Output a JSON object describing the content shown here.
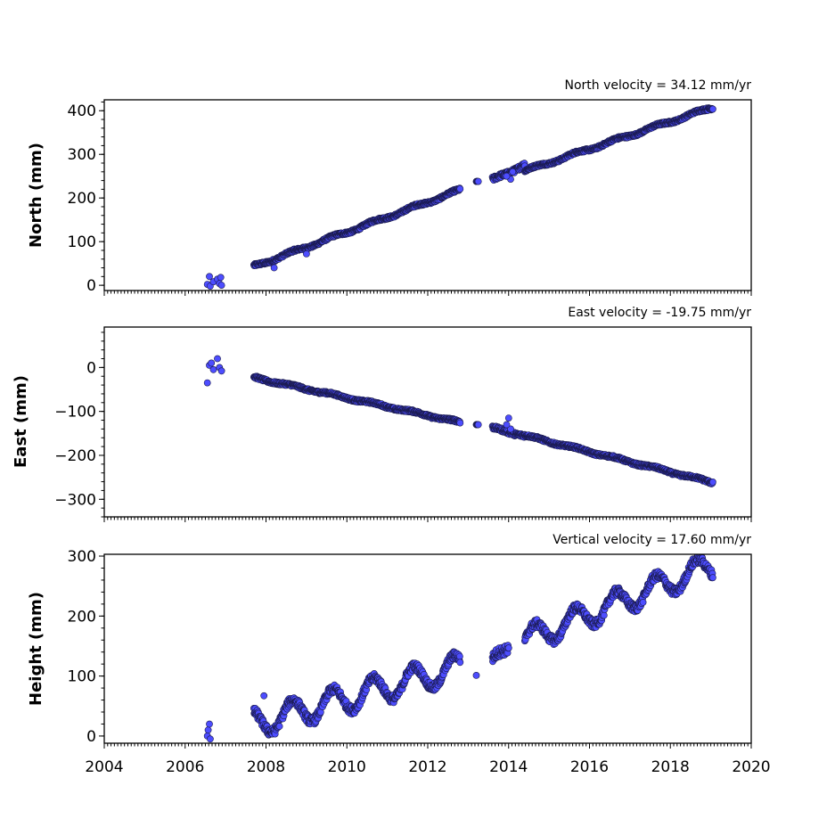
{
  "chart_data": [
    {
      "type": "scatter",
      "id": "north",
      "ylabel": "North (mm)",
      "annotation": "North velocity = 34.12 mm/yr",
      "xlim": [
        2004,
        2020
      ],
      "ylim": [
        -12,
        425
      ],
      "yticks": [
        0,
        100,
        200,
        300,
        400
      ],
      "yminor_step": 20,
      "outliers": [
        [
          2006.55,
          2
        ],
        [
          2006.6,
          20
        ],
        [
          2006.62,
          -2
        ],
        [
          2006.7,
          8
        ],
        [
          2006.8,
          14
        ],
        [
          2006.85,
          4
        ],
        [
          2006.88,
          18
        ],
        [
          2006.9,
          0
        ],
        [
          2014.05,
          243
        ],
        [
          2014.1,
          260
        ],
        [
          2013.95,
          250
        ],
        [
          2008.2,
          40
        ],
        [
          2009.0,
          72
        ]
      ],
      "segments": [
        {
          "x0": 2007.7,
          "y0": 43,
          "x1": 2012.8,
          "y1": 218,
          "wave": 3,
          "noise": 3
        },
        {
          "x0": 2013.2,
          "y0": 238,
          "x1": 2013.25,
          "y1": 238,
          "wave": 0,
          "noise": 0
        },
        {
          "x0": 2013.6,
          "y0": 240,
          "x1": 2014.4,
          "y1": 278,
          "wave": 3,
          "noise": 5
        },
        {
          "x0": 2014.4,
          "y0": 262,
          "x1": 2019.05,
          "y1": 408,
          "wave": 3,
          "noise": 3
        }
      ],
      "xaxis_labels": false
    },
    {
      "type": "scatter",
      "id": "east",
      "ylabel": "East (mm)",
      "annotation": "East velocity = -19.75 mm/yr",
      "xlim": [
        2004,
        2020
      ],
      "ylim": [
        -340,
        92
      ],
      "yticks": [
        0,
        -100,
        -200,
        -300
      ],
      "ytick_labels": [
        "0",
        "−100",
        "−200",
        "−300"
      ],
      "yminor_step": 20,
      "outliers": [
        [
          2006.55,
          -35
        ],
        [
          2006.6,
          5
        ],
        [
          2006.65,
          10
        ],
        [
          2006.7,
          -5
        ],
        [
          2006.8,
          20
        ],
        [
          2006.85,
          0
        ],
        [
          2006.9,
          -8
        ],
        [
          2014.0,
          -115
        ],
        [
          2014.05,
          -140
        ],
        [
          2013.95,
          -130
        ]
      ],
      "segments": [
        {
          "x0": 2007.7,
          "y0": -23,
          "x1": 2012.8,
          "y1": -125,
          "wave": 2,
          "noise": 3
        },
        {
          "x0": 2013.2,
          "y0": -130,
          "x1": 2013.25,
          "y1": -130,
          "wave": 0,
          "noise": 0
        },
        {
          "x0": 2013.6,
          "y0": -138,
          "x1": 2014.4,
          "y1": -155,
          "wave": 2,
          "noise": 4
        },
        {
          "x0": 2014.4,
          "y0": -155,
          "x1": 2019.05,
          "y1": -262,
          "wave": 2,
          "noise": 3
        }
      ],
      "xaxis_labels": false
    },
    {
      "type": "scatter",
      "id": "height",
      "ylabel": "Height (mm)",
      "annotation": "Vertical velocity = 17.60 mm/yr",
      "xlim": [
        2004,
        2020
      ],
      "ylim": [
        -12,
        303
      ],
      "yticks": [
        0,
        100,
        200,
        300
      ],
      "yminor_step": 20,
      "outliers": [
        [
          2006.55,
          0
        ],
        [
          2006.57,
          10
        ],
        [
          2006.6,
          20
        ],
        [
          2006.62,
          -5
        ],
        [
          2007.95,
          67
        ],
        [
          2013.2,
          101
        ]
      ],
      "segments": [
        {
          "x0": 2007.7,
          "y0": 20,
          "x1": 2012.8,
          "y1": 115,
          "wave": 22,
          "noise": 7
        },
        {
          "x0": 2013.6,
          "y0": 120,
          "x1": 2014.0,
          "y1": 150,
          "wave": 10,
          "noise": 8
        },
        {
          "x0": 2014.4,
          "y0": 160,
          "x1": 2019.05,
          "y1": 285,
          "wave": 20,
          "noise": 7
        }
      ],
      "xticks": [
        2004,
        2006,
        2008,
        2010,
        2012,
        2014,
        2016,
        2018,
        2020
      ],
      "xaxis_labels": true
    }
  ]
}
